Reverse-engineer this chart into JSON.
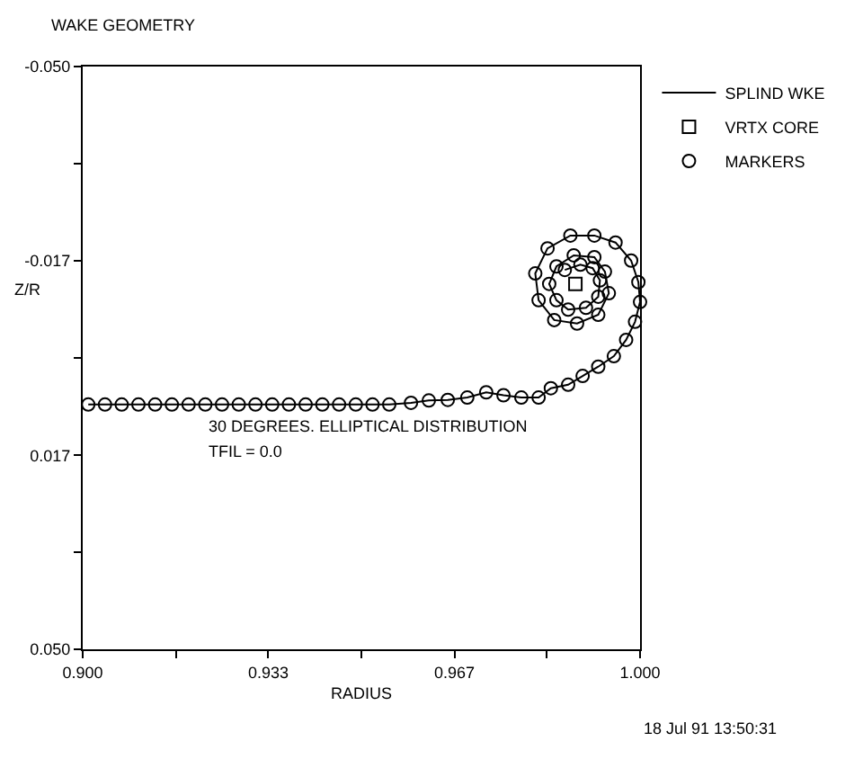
{
  "chart_data": {
    "type": "line",
    "title": "WAKE GEOMETRY",
    "xlabel": "RADIUS",
    "ylabel": "Z/R",
    "xlim": [
      0.9,
      1.0
    ],
    "ylim": [
      0.05,
      -0.05
    ],
    "xticks": [
      {
        "value": 0.9,
        "label": "0.900"
      },
      {
        "value": 0.9167,
        "label": null
      },
      {
        "value": 0.9333,
        "label": "0.933"
      },
      {
        "value": 0.95,
        "label": null
      },
      {
        "value": 0.9667,
        "label": "0.967"
      },
      {
        "value": 0.9833,
        "label": null
      },
      {
        "value": 1.0,
        "label": "1.000"
      }
    ],
    "yticks": [
      {
        "value": -0.05,
        "label": "-0.050"
      },
      {
        "value": -0.0333,
        "label": null
      },
      {
        "value": -0.0167,
        "label": "-0.017"
      },
      {
        "value": 0,
        "label": null
      },
      {
        "value": 0.0167,
        "label": "0.017"
      },
      {
        "value": 0.0333,
        "label": null
      },
      {
        "value": 0.05,
        "label": "0.050"
      }
    ],
    "grid": false,
    "legend": "top right",
    "x": [
      0.901,
      0.904,
      0.907,
      0.91,
      0.913,
      0.916,
      0.919,
      0.922,
      0.925,
      0.928,
      0.931,
      0.934,
      0.937,
      0.94,
      0.943,
      0.946,
      0.949,
      0.952,
      0.955,
      0.9589,
      0.9621,
      0.9655,
      0.969,
      0.9724,
      0.9755,
      0.9787,
      0.9818,
      0.984,
      0.9871,
      0.9897,
      0.9925,
      0.9953,
      0.9975,
      0.9991,
      1.0,
      0.9997,
      0.9984,
      0.9956,
      0.9918,
      0.9875,
      0.9834,
      0.9812,
      0.9818,
      0.9846,
      0.9887,
      0.9925,
      0.9944,
      0.9937,
      0.9918,
      0.9881,
      0.985,
      0.9837,
      0.985,
      0.9871,
      0.9903,
      0.9925,
      0.9928,
      0.9915,
      0.9893,
      0.9865
    ],
    "series": [
      {
        "name": "SPLIND WKE",
        "marker": "none",
        "line_style": "solid",
        "color": "#000000",
        "values": [
          0.008,
          0.008,
          0.008,
          0.008,
          0.008,
          0.008,
          0.008,
          0.008,
          0.008,
          0.008,
          0.008,
          0.008,
          0.008,
          0.008,
          0.008,
          0.008,
          0.008,
          0.008,
          0.008,
          0.0077,
          0.0073,
          0.0072,
          0.0068,
          0.0059,
          0.0064,
          0.0068,
          0.0068,
          0.0052,
          0.0046,
          0.0031,
          0.0015,
          -0.0003,
          -0.0031,
          -0.0062,
          -0.0096,
          -0.013,
          -0.0167,
          -0.0198,
          -0.021,
          -0.021,
          -0.0188,
          -0.0145,
          -0.0099,
          -0.0065,
          -0.0059,
          -0.0074,
          -0.0111,
          -0.0148,
          -0.0173,
          -0.0176,
          -0.0157,
          -0.0127,
          -0.0099,
          -0.0083,
          -0.0086,
          -0.0105,
          -0.0133,
          -0.0154,
          -0.016,
          -0.0151
        ]
      },
      {
        "name": "VRTX CORE",
        "type": "scatter",
        "marker": "square",
        "color": "#000000",
        "x": [
          0.9884
        ],
        "values": [
          -0.0127
        ]
      },
      {
        "name": "MARKERS",
        "type": "scatter",
        "marker": "circle",
        "color": "#000000",
        "values": [
          0.008,
          0.008,
          0.008,
          0.008,
          0.008,
          0.008,
          0.008,
          0.008,
          0.008,
          0.008,
          0.008,
          0.008,
          0.008,
          0.008,
          0.008,
          0.008,
          0.008,
          0.008,
          0.008,
          0.0077,
          0.0073,
          0.0072,
          0.0068,
          0.0059,
          0.0064,
          0.0068,
          0.0068,
          0.0052,
          0.0046,
          0.0031,
          0.0015,
          -0.0003,
          -0.0031,
          -0.0062,
          -0.0096,
          -0.013,
          -0.0167,
          -0.0198,
          -0.021,
          -0.021,
          -0.0188,
          -0.0145,
          -0.0099,
          -0.0065,
          -0.0059,
          -0.0074,
          -0.0111,
          -0.0148,
          -0.0173,
          -0.0176,
          -0.0157,
          -0.0127,
          -0.0099,
          -0.0083,
          -0.0086,
          -0.0105,
          -0.0133,
          -0.0154,
          -0.016,
          -0.0151
        ]
      }
    ],
    "annotations": [
      "30 DEGREES. ELLIPTICAL DISTRIBUTION",
      "TFIL = 0.0",
      "18 Jul 91 13:50:31"
    ]
  }
}
